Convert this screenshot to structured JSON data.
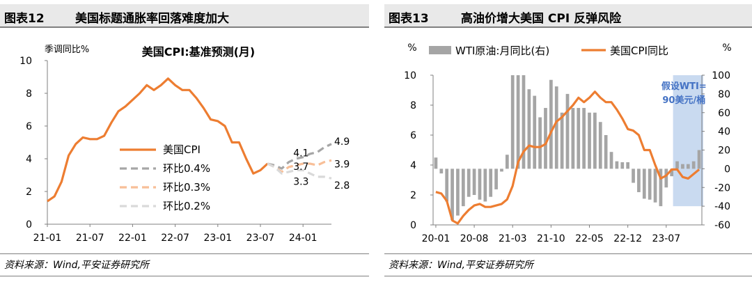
{
  "left_panel": {
    "fig_num": "图表12",
    "fig_title": "美国标题通胀率回落难度加大",
    "source": "资料来源：Wind,平安证券研究所"
  },
  "right_panel": {
    "fig_num": "图表13",
    "fig_title": "高油价增大美国 CPI 反弹风险",
    "source": "资料来源：Wind,平安证券研究所"
  },
  "colors": {
    "orange": "#ED7D31",
    "gray_bar": "#A5A5A5",
    "dash_gray": "#A6A6A6",
    "dash_light_orange": "#F8BF98",
    "dash_lightgray": "#D9D9D9",
    "shade": "#C9DAF0",
    "annotation": "#4472C4"
  },
  "chart_data": [
    {
      "type": "line",
      "title": "美国CPI:基准预测(月)",
      "ylabel": "季调同比%",
      "ylim": [
        0,
        10
      ],
      "yticks": [
        "0",
        "2",
        "4",
        "6",
        "8",
        "10"
      ],
      "xticks": [
        "21-01",
        "21-07",
        "22-01",
        "22-07",
        "23-01",
        "23-07",
        "24-01"
      ],
      "grid": false,
      "legend": [
        "美国CPI",
        "环比0.4%",
        "环比0.3%",
        "环比0.2%"
      ],
      "series": [
        {
          "name": "美国CPI",
          "x": [
            "21-01",
            "21-02",
            "21-03",
            "21-04",
            "21-05",
            "21-06",
            "21-07",
            "21-08",
            "21-09",
            "21-10",
            "21-11",
            "21-12",
            "22-01",
            "22-02",
            "22-03",
            "22-04",
            "22-05",
            "22-06",
            "22-07",
            "22-08",
            "22-09",
            "22-10",
            "22-11",
            "22-12",
            "23-01",
            "23-02",
            "23-03",
            "23-04",
            "23-05",
            "23-06",
            "23-07",
            "23-08"
          ],
          "values": [
            1.4,
            1.7,
            2.6,
            4.2,
            4.9,
            5.3,
            5.2,
            5.2,
            5.4,
            6.2,
            6.9,
            7.2,
            7.6,
            8.0,
            8.5,
            8.2,
            8.5,
            8.9,
            8.5,
            8.2,
            8.2,
            7.7,
            7.1,
            6.4,
            6.3,
            6.0,
            5.0,
            5.0,
            4.0,
            3.1,
            3.3,
            3.7
          ]
        },
        {
          "name": "环比0.4%",
          "x": [
            "23-08",
            "23-09",
            "23-10",
            "23-11",
            "23-12",
            "24-01",
            "24-02",
            "24-03",
            "24-04",
            "24-05"
          ],
          "values": [
            3.7,
            3.6,
            3.4,
            3.8,
            4.0,
            4.1,
            4.3,
            4.4,
            4.7,
            4.9
          ]
        },
        {
          "name": "环比0.3%",
          "x": [
            "23-08",
            "23-09",
            "23-10",
            "23-11",
            "23-12",
            "24-01",
            "24-02",
            "24-03",
            "24-04",
            "24-05"
          ],
          "values": [
            3.7,
            3.5,
            3.2,
            3.5,
            3.6,
            3.7,
            3.7,
            3.6,
            3.8,
            3.9
          ]
        },
        {
          "name": "环比0.2%",
          "x": [
            "23-08",
            "23-09",
            "23-10",
            "23-11",
            "23-12",
            "24-01",
            "24-02",
            "24-03",
            "24-04",
            "24-05"
          ],
          "values": [
            3.7,
            3.5,
            3.1,
            3.2,
            3.3,
            3.3,
            3.1,
            2.9,
            2.9,
            2.8
          ]
        }
      ],
      "annotations": [
        {
          "text": "4.1",
          "series": "环比0.4%",
          "at": "24-01"
        },
        {
          "text": "3.7",
          "series": "环比0.3%",
          "at": "24-01"
        },
        {
          "text": "3.3",
          "series": "环比0.2%",
          "at": "24-01"
        },
        {
          "text": "4.9",
          "series": "环比0.4%",
          "at": "24-05"
        },
        {
          "text": "3.9",
          "series": "环比0.3%",
          "at": "24-05"
        },
        {
          "text": "2.8",
          "series": "环比0.2%",
          "at": "24-05"
        }
      ]
    },
    {
      "type": "bar",
      "title": "",
      "ylabel_left": "%",
      "ylabel_right": "%",
      "ylim_left": [
        0,
        10
      ],
      "ylim_right": [
        -60,
        100
      ],
      "yticks_left": [
        "0",
        "2",
        "4",
        "6",
        "8",
        "10"
      ],
      "yticks_right": [
        "-60",
        "-40",
        "-20",
        "0",
        "20",
        "40",
        "60",
        "80",
        "100"
      ],
      "xticks": [
        "20-01",
        "20-08",
        "21-03",
        "21-10",
        "22-05",
        "22-12",
        "23-07"
      ],
      "legend": [
        "WTI原油:月同比(右)",
        "美国CPI同比"
      ],
      "grid": false,
      "x": [
        "20-01",
        "20-02",
        "20-03",
        "20-04",
        "20-05",
        "20-06",
        "20-07",
        "20-08",
        "20-09",
        "20-10",
        "20-11",
        "20-12",
        "21-01",
        "21-02",
        "21-03",
        "21-04",
        "21-05",
        "21-06",
        "21-07",
        "21-08",
        "21-09",
        "21-10",
        "21-11",
        "21-12",
        "22-01",
        "22-02",
        "22-03",
        "22-04",
        "22-05",
        "22-06",
        "22-07",
        "22-08",
        "22-09",
        "22-10",
        "22-11",
        "22-12",
        "23-01",
        "23-02",
        "23-03",
        "23-04",
        "23-05",
        "23-06",
        "23-07",
        "23-08",
        "23-09",
        "23-10",
        "23-11",
        "23-12",
        "24-01"
      ],
      "series": [
        {
          "name": "WTI原油:月同比(右)",
          "axis": "right",
          "values": [
            12,
            -5,
            -35,
            -55,
            -50,
            -40,
            -30,
            -28,
            -33,
            -35,
            -30,
            -22,
            -3,
            15,
            100,
            100,
            100,
            85,
            78,
            55,
            65,
            95,
            88,
            60,
            80,
            65,
            65,
            65,
            60,
            60,
            50,
            36,
            18,
            8,
            7,
            7,
            -15,
            -25,
            -32,
            -33,
            -36,
            -40,
            -20,
            -8,
            8,
            5,
            5,
            8,
            20
          ]
        },
        {
          "name": "美国CPI同比",
          "axis": "left",
          "values": [
            2.2,
            2.1,
            1.6,
            0.3,
            0.1,
            0.6,
            1.0,
            1.3,
            1.4,
            1.2,
            1.2,
            1.3,
            1.4,
            1.7,
            2.6,
            4.2,
            4.9,
            5.3,
            5.2,
            5.2,
            5.4,
            6.2,
            6.9,
            7.2,
            7.6,
            8.0,
            8.5,
            8.2,
            8.5,
            8.9,
            8.5,
            8.2,
            8.2,
            7.7,
            7.1,
            6.4,
            6.3,
            6.0,
            5.0,
            5.0,
            4.0,
            3.1,
            3.3,
            3.7,
            3.7,
            3.2,
            3.1,
            3.4,
            3.7
          ]
        }
      ],
      "shaded_region": {
        "from": "23-09",
        "to": "24-01"
      },
      "annotation": "假设WTI=90美元/桶"
    }
  ]
}
